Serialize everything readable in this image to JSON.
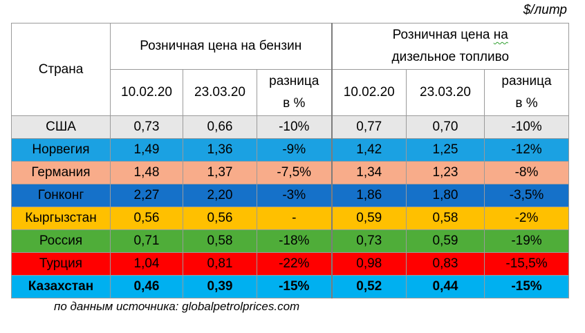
{
  "unit_label": "$/литр",
  "header": {
    "country": "Страна",
    "gasoline": "Розничная цена на бензин",
    "diesel_line1": "Розничная цена на",
    "diesel_line2": "дизельное топливо",
    "date1": "10.02.20",
    "date2": "23.03.20",
    "diff_line1": "разница",
    "diff_line2": "в %"
  },
  "colors": {
    "usa": "#e7e7e7",
    "norway": "#1ba1e2",
    "germany": "#f8ac8a",
    "hongkong": "#1571c9",
    "kyrgyzstan": "#ffc000",
    "russia": "#4fad39",
    "turkey": "#ff0000",
    "kazakhstan": "#00b0f0",
    "border": "#9a9a9a"
  },
  "rows": [
    {
      "country": "США",
      "gas_d1": "0,73",
      "gas_d2": "0,66",
      "gas_diff": "-10%",
      "dsl_d1": "0,77",
      "dsl_d2": "0,70",
      "dsl_diff": "-10%"
    },
    {
      "country": "Норвегия",
      "gas_d1": "1,49",
      "gas_d2": "1,36",
      "gas_diff": "-9%",
      "dsl_d1": "1,42",
      "dsl_d2": "1,25",
      "dsl_diff": "-12%"
    },
    {
      "country": "Германия",
      "gas_d1": "1,48",
      "gas_d2": "1,37",
      "gas_diff": "-7,5%",
      "dsl_d1": "1,34",
      "dsl_d2": "1,23",
      "dsl_diff": "-8%"
    },
    {
      "country": "Гонконг",
      "gas_d1": "2,27",
      "gas_d2": "2,20",
      "gas_diff": "-3%",
      "dsl_d1": "1,86",
      "dsl_d2": "1,80",
      "dsl_diff": "-3,5%"
    },
    {
      "country": "Кыргызстан",
      "gas_d1": "0,56",
      "gas_d2": "0,56",
      "gas_diff": "-",
      "dsl_d1": "0,59",
      "dsl_d2": "0,58",
      "dsl_diff": "-2%"
    },
    {
      "country": "Россия",
      "gas_d1": "0,71",
      "gas_d2": "0,58",
      "gas_diff": "-18%",
      "dsl_d1": "0,73",
      "dsl_d2": "0,59",
      "dsl_diff": "-19%"
    },
    {
      "country": "Турция",
      "gas_d1": "1,04",
      "gas_d2": "0,81",
      "gas_diff": "-22%",
      "dsl_d1": "0,98",
      "dsl_d2": "0,83",
      "dsl_diff": "-15,5%"
    },
    {
      "country": "Казахстан",
      "gas_d1": "0,46",
      "gas_d2": "0,39",
      "gas_diff": "-15%",
      "dsl_d1": "0,52",
      "dsl_d2": "0,44",
      "dsl_diff": "-15%"
    }
  ],
  "source_note": "по данным источника: globalpetrolprices.com"
}
